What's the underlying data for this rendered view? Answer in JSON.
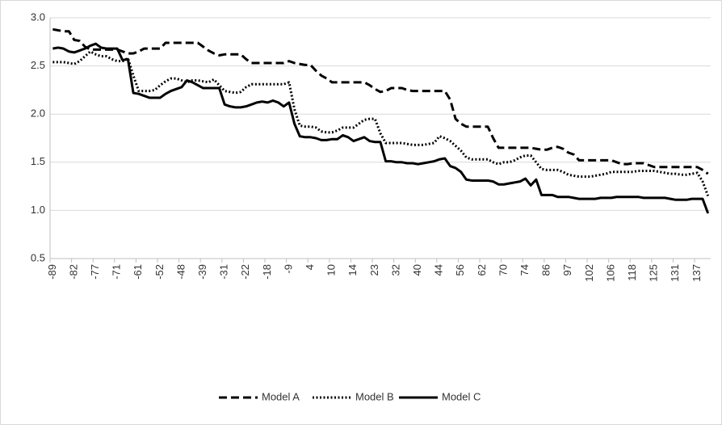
{
  "chart_data": {
    "type": "line",
    "categories": [
      -89,
      null,
      null,
      null,
      -82,
      null,
      null,
      null,
      -77,
      null,
      null,
      null,
      -71,
      null,
      null,
      null,
      -61,
      null,
      null,
      null,
      -52,
      null,
      null,
      null,
      -48,
      null,
      null,
      null,
      -39,
      null,
      null,
      null,
      -31,
      null,
      null,
      null,
      -22,
      null,
      null,
      null,
      -18,
      null,
      null,
      null,
      -9,
      null,
      null,
      null,
      4,
      null,
      null,
      null,
      10,
      null,
      null,
      null,
      14,
      null,
      null,
      null,
      23,
      null,
      null,
      null,
      32,
      null,
      null,
      null,
      40,
      null,
      null,
      null,
      44,
      null,
      null,
      null,
      56,
      null,
      null,
      null,
      62,
      null,
      null,
      null,
      70,
      null,
      null,
      null,
      74,
      null,
      null,
      null,
      86,
      null,
      null,
      null,
      97,
      null,
      null,
      null,
      102,
      null,
      null,
      null,
      106,
      null,
      null,
      null,
      118,
      null,
      null,
      null,
      125,
      null,
      null,
      null,
      131,
      null,
      null,
      null,
      137,
      null,
      null
    ],
    "series": [
      {
        "name": "Model A",
        "color": "#000000",
        "dash": "dashed",
        "values": [
          2.88,
          2.87,
          2.86,
          2.86,
          2.77,
          2.76,
          2.7,
          2.67,
          2.67,
          2.67,
          2.67,
          2.67,
          2.67,
          2.65,
          2.63,
          2.63,
          2.65,
          2.68,
          2.68,
          2.68,
          2.68,
          2.74,
          2.74,
          2.74,
          2.74,
          2.74,
          2.74,
          2.74,
          2.7,
          2.66,
          2.63,
          2.61,
          2.62,
          2.62,
          2.62,
          2.62,
          2.57,
          2.53,
          2.53,
          2.53,
          2.53,
          2.53,
          2.53,
          2.53,
          2.55,
          2.53,
          2.52,
          2.51,
          2.51,
          2.45,
          2.4,
          2.37,
          2.33,
          2.33,
          2.33,
          2.33,
          2.33,
          2.33,
          2.33,
          2.3,
          2.26,
          2.23,
          2.24,
          2.27,
          2.27,
          2.27,
          2.25,
          2.24,
          2.24,
          2.24,
          2.24,
          2.24,
          2.24,
          2.24,
          2.15,
          1.95,
          1.9,
          1.87,
          1.87,
          1.87,
          1.87,
          1.87,
          1.75,
          1.65,
          1.65,
          1.65,
          1.65,
          1.65,
          1.65,
          1.65,
          1.64,
          1.63,
          1.63,
          1.65,
          1.66,
          1.64,
          1.6,
          1.58,
          1.52,
          1.52,
          1.52,
          1.52,
          1.52,
          1.52,
          1.52,
          1.5,
          1.48,
          1.48,
          1.49,
          1.49,
          1.49,
          1.47,
          1.45,
          1.45,
          1.45,
          1.45,
          1.45,
          1.45,
          1.45,
          1.45,
          1.45,
          1.42,
          1.38
        ]
      },
      {
        "name": "Model B",
        "color": "#000000",
        "dash": "dotted",
        "values": [
          2.54,
          2.54,
          2.54,
          2.53,
          2.52,
          2.55,
          2.6,
          2.65,
          2.62,
          2.6,
          2.6,
          2.57,
          2.55,
          2.55,
          2.58,
          2.4,
          2.24,
          2.24,
          2.24,
          2.25,
          2.3,
          2.34,
          2.37,
          2.37,
          2.35,
          2.33,
          2.35,
          2.35,
          2.34,
          2.33,
          2.36,
          2.3,
          2.24,
          2.23,
          2.22,
          2.23,
          2.28,
          2.31,
          2.31,
          2.31,
          2.31,
          2.31,
          2.31,
          2.31,
          2.33,
          2.05,
          1.88,
          1.87,
          1.87,
          1.86,
          1.82,
          1.81,
          1.81,
          1.83,
          1.86,
          1.86,
          1.86,
          1.9,
          1.94,
          1.95,
          1.95,
          1.8,
          1.7,
          1.7,
          1.7,
          1.7,
          1.69,
          1.68,
          1.68,
          1.68,
          1.69,
          1.7,
          1.77,
          1.75,
          1.72,
          1.67,
          1.62,
          1.55,
          1.53,
          1.53,
          1.53,
          1.53,
          1.5,
          1.48,
          1.5,
          1.5,
          1.52,
          1.55,
          1.57,
          1.57,
          1.5,
          1.43,
          1.42,
          1.42,
          1.42,
          1.4,
          1.37,
          1.36,
          1.35,
          1.35,
          1.35,
          1.36,
          1.37,
          1.38,
          1.4,
          1.4,
          1.4,
          1.4,
          1.4,
          1.41,
          1.41,
          1.41,
          1.41,
          1.4,
          1.39,
          1.38,
          1.38,
          1.37,
          1.37,
          1.38,
          1.39,
          1.3,
          1.15
        ]
      },
      {
        "name": "Model C",
        "color": "#000000",
        "dash": "solid",
        "values": [
          2.68,
          2.69,
          2.68,
          2.65,
          2.64,
          2.66,
          2.68,
          2.71,
          2.73,
          2.69,
          2.68,
          2.68,
          2.68,
          2.56,
          2.57,
          2.22,
          2.21,
          2.19,
          2.17,
          2.17,
          2.17,
          2.21,
          2.24,
          2.26,
          2.28,
          2.35,
          2.33,
          2.3,
          2.27,
          2.27,
          2.27,
          2.27,
          2.1,
          2.08,
          2.07,
          2.07,
          2.08,
          2.1,
          2.12,
          2.13,
          2.12,
          2.14,
          2.12,
          2.08,
          2.12,
          1.9,
          1.77,
          1.76,
          1.76,
          1.75,
          1.73,
          1.73,
          1.74,
          1.74,
          1.78,
          1.76,
          1.72,
          1.74,
          1.76,
          1.72,
          1.71,
          1.71,
          1.51,
          1.51,
          1.5,
          1.5,
          1.49,
          1.49,
          1.48,
          1.49,
          1.5,
          1.51,
          1.53,
          1.54,
          1.46,
          1.44,
          1.4,
          1.32,
          1.31,
          1.31,
          1.31,
          1.31,
          1.3,
          1.27,
          1.27,
          1.28,
          1.29,
          1.3,
          1.33,
          1.26,
          1.32,
          1.16,
          1.16,
          1.16,
          1.14,
          1.14,
          1.14,
          1.13,
          1.12,
          1.12,
          1.12,
          1.12,
          1.13,
          1.13,
          1.13,
          1.14,
          1.14,
          1.14,
          1.14,
          1.14,
          1.13,
          1.13,
          1.13,
          1.13,
          1.13,
          1.12,
          1.11,
          1.11,
          1.11,
          1.12,
          1.12,
          1.12,
          0.97
        ]
      }
    ],
    "ylim": [
      0.5,
      3.0
    ],
    "yticks": [
      0.5,
      {
        "value": 1.0,
        "label": "1.0"
      },
      1.5,
      {
        "value": 2.0,
        "label": "2.0"
      },
      2.5,
      {
        "value": 3.0,
        "label": "3.0"
      }
    ],
    "grid": true,
    "legend": "bottom"
  }
}
